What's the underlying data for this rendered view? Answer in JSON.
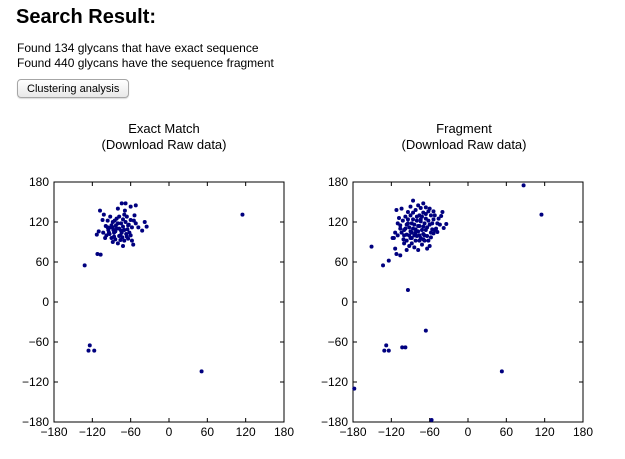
{
  "header": {
    "title": "Search Result:",
    "exact_line": "Found 134 glycans that have exact sequence",
    "fragment_line": "Found 440 glycans have the sequence fragment",
    "button_label": "Clustering analysis"
  },
  "plots": [
    {
      "title": "Exact Match",
      "subtitle": "(Download Raw data)"
    },
    {
      "title": "Fragment",
      "subtitle": "(Download Raw data)"
    }
  ],
  "colors": {
    "points": "#00007f",
    "axes": "#000000"
  },
  "chart_data": [
    {
      "type": "scatter",
      "title": "Exact Match",
      "xlim": [
        -180,
        180
      ],
      "ylim": [
        -180,
        180
      ],
      "xticks": [
        -180,
        -120,
        -60,
        0,
        60,
        120,
        180
      ],
      "yticks": [
        -180,
        -120,
        -60,
        0,
        60,
        120,
        180
      ],
      "points": [
        [
          -132,
          55
        ],
        [
          -112,
          72
        ],
        [
          -107,
          71
        ],
        [
          -110,
          106
        ],
        [
          -113,
          101
        ],
        [
          -103,
          104
        ],
        [
          -100,
          96
        ],
        [
          -95,
          108
        ],
        [
          -93,
          102
        ],
        [
          -90,
          115
        ],
        [
          -88,
          112
        ],
        [
          -86,
          98
        ],
        [
          -84,
          106
        ],
        [
          -82,
          125
        ],
        [
          -80,
          118
        ],
        [
          -78,
          110
        ],
        [
          -76,
          100
        ],
        [
          -74,
          104
        ],
        [
          -72,
          113
        ],
        [
          -70,
          108
        ],
        [
          -68,
          120
        ],
        [
          -66,
          128
        ],
        [
          -64,
          115
        ],
        [
          -62,
          104
        ],
        [
          -60,
          100
        ],
        [
          -58,
          92
        ],
        [
          -56,
          86
        ],
        [
          -78,
          128
        ],
        [
          -80,
          140
        ],
        [
          -74,
          148
        ],
        [
          -68,
          148
        ],
        [
          -60,
          143
        ],
        [
          -52,
          145
        ],
        [
          -70,
          131
        ],
        [
          -72,
          124
        ],
        [
          -88,
          120
        ],
        [
          -92,
          128
        ],
        [
          -96,
          122
        ],
        [
          -104,
          123
        ],
        [
          -108,
          137
        ],
        [
          -102,
          131
        ],
        [
          -84,
          94
        ],
        [
          -76,
          93
        ],
        [
          -88,
          90
        ],
        [
          -80,
          88
        ],
        [
          -66,
          98
        ],
        [
          -70,
          92
        ],
        [
          -63,
          116
        ],
        [
          -58,
          112
        ],
        [
          -55,
          122
        ],
        [
          -72,
          84
        ],
        [
          -82,
          110
        ],
        [
          -86,
          104
        ],
        [
          -91,
          112
        ],
        [
          -96,
          112
        ],
        [
          -98,
          100
        ],
        [
          -90,
          96
        ],
        [
          -85,
          122
        ],
        [
          -75,
          118
        ],
        [
          -65,
          109
        ],
        [
          -60,
          123
        ],
        [
          -54,
          130
        ],
        [
          -48,
          112
        ],
        [
          -42,
          107
        ],
        [
          -35,
          113
        ],
        [
          -38,
          120
        ],
        [
          -52,
          118
        ],
        [
          -75,
          107
        ],
        [
          -78,
          99
        ],
        [
          -67,
          102
        ],
        [
          -64,
          95
        ],
        [
          -83,
          115
        ],
        [
          -94,
          104
        ],
        [
          -99,
          114
        ],
        [
          -87,
          108
        ],
        [
          -69,
          137
        ],
        [
          -73,
          97
        ],
        [
          115,
          131
        ],
        [
          -124,
          -65
        ],
        [
          -126,
          -73
        ],
        [
          -117,
          -73
        ],
        [
          51,
          -104
        ]
      ]
    },
    {
      "type": "scatter",
      "title": "Fragment",
      "xlim": [
        -180,
        180
      ],
      "ylim": [
        -180,
        180
      ],
      "xticks": [
        -180,
        -120,
        -60,
        0,
        60,
        120,
        180
      ],
      "yticks": [
        -180,
        -120,
        -60,
        0,
        60,
        120,
        180
      ],
      "points": [
        [
          -178,
          -130
        ],
        [
          -151,
          83
        ],
        [
          -133,
          55
        ],
        [
          -124,
          62
        ],
        [
          -114,
          80
        ],
        [
          -112,
          72
        ],
        [
          -106,
          70
        ],
        [
          -110,
          100
        ],
        [
          -116,
          96
        ],
        [
          -104,
          104
        ],
        [
          -101,
          94
        ],
        [
          -98,
          110
        ],
        [
          -96,
          101
        ],
        [
          -94,
          118
        ],
        [
          -92,
          112
        ],
        [
          -90,
          96
        ],
        [
          -88,
          104
        ],
        [
          -86,
          124
        ],
        [
          -84,
          116
        ],
        [
          -82,
          109
        ],
        [
          -80,
          99
        ],
        [
          -78,
          106
        ],
        [
          -76,
          114
        ],
        [
          -74,
          121
        ],
        [
          -72,
          128
        ],
        [
          -70,
          134
        ],
        [
          -68,
          118
        ],
        [
          -66,
          108
        ],
        [
          -64,
          99
        ],
        [
          -62,
          92
        ],
        [
          -60,
          84
        ],
        [
          -58,
          104
        ],
        [
          -56,
          118
        ],
        [
          -54,
          124
        ],
        [
          -52,
          108
        ],
        [
          -50,
          110
        ],
        [
          -48,
          118
        ],
        [
          -46,
          125
        ],
        [
          -44,
          116
        ],
        [
          -42,
          129
        ],
        [
          -40,
          135
        ],
        [
          -38,
          111
        ],
        [
          -34,
          117
        ],
        [
          -82,
          138
        ],
        [
          -78,
          145
        ],
        [
          -74,
          141
        ],
        [
          -70,
          148
        ],
        [
          -66,
          142
        ],
        [
          -62,
          136
        ],
        [
          -58,
          130
        ],
        [
          -90,
          143
        ],
        [
          -86,
          152
        ],
        [
          -94,
          135
        ],
        [
          -98,
          128
        ],
        [
          -102,
          122
        ],
        [
          -106,
          115
        ],
        [
          -108,
          126
        ],
        [
          -112,
          138
        ],
        [
          -104,
          140
        ],
        [
          -88,
          88
        ],
        [
          -84,
          82
        ],
        [
          -78,
          78
        ],
        [
          -72,
          86
        ],
        [
          -68,
          92
        ],
        [
          -64,
          80
        ],
        [
          -76,
          92
        ],
        [
          -92,
          84
        ],
        [
          -96,
          78
        ],
        [
          -100,
          88
        ],
        [
          -80,
          122
        ],
        [
          -86,
          110
        ],
        [
          -90,
          130
        ],
        [
          -94,
          124
        ],
        [
          -70,
          102
        ],
        [
          -74,
          96
        ],
        [
          -66,
          125
        ],
        [
          -60,
          116
        ],
        [
          -56,
          109
        ],
        [
          -52,
          130
        ],
        [
          -48,
          105
        ],
        [
          -62,
          122
        ],
        [
          -82,
          92
        ],
        [
          -88,
          118
        ],
        [
          -76,
          130
        ],
        [
          -70,
          113
        ],
        [
          -64,
          112
        ],
        [
          -58,
          97
        ],
        [
          -54,
          103
        ],
        [
          -68,
          100
        ],
        [
          -72,
          108
        ],
        [
          -78,
          114
        ],
        [
          -84,
          100
        ],
        [
          -90,
          106
        ],
        [
          -96,
          116
        ],
        [
          -100,
          108
        ],
        [
          -106,
          110
        ],
        [
          -110,
          118
        ],
        [
          -114,
          104
        ],
        [
          -118,
          96
        ],
        [
          -86,
          134
        ],
        [
          -80,
          128
        ],
        [
          -74,
          124
        ],
        [
          -66,
          132
        ],
        [
          -60,
          140
        ],
        [
          -54,
          136
        ],
        [
          -100,
          100
        ],
        [
          -96,
          92
        ],
        [
          -92,
          100
        ],
        [
          -88,
          96
        ],
        [
          -82,
          104
        ],
        [
          -76,
          100
        ],
        [
          -70,
          94
        ],
        [
          -94,
          18
        ],
        [
          -128,
          -65
        ],
        [
          -131,
          -73
        ],
        [
          -124,
          -73
        ],
        [
          -103,
          -68
        ],
        [
          -98,
          -68
        ],
        [
          -66,
          -43
        ],
        [
          -57,
          -177
        ],
        [
          87,
          175
        ],
        [
          115,
          131
        ],
        [
          53,
          -104
        ]
      ]
    }
  ]
}
